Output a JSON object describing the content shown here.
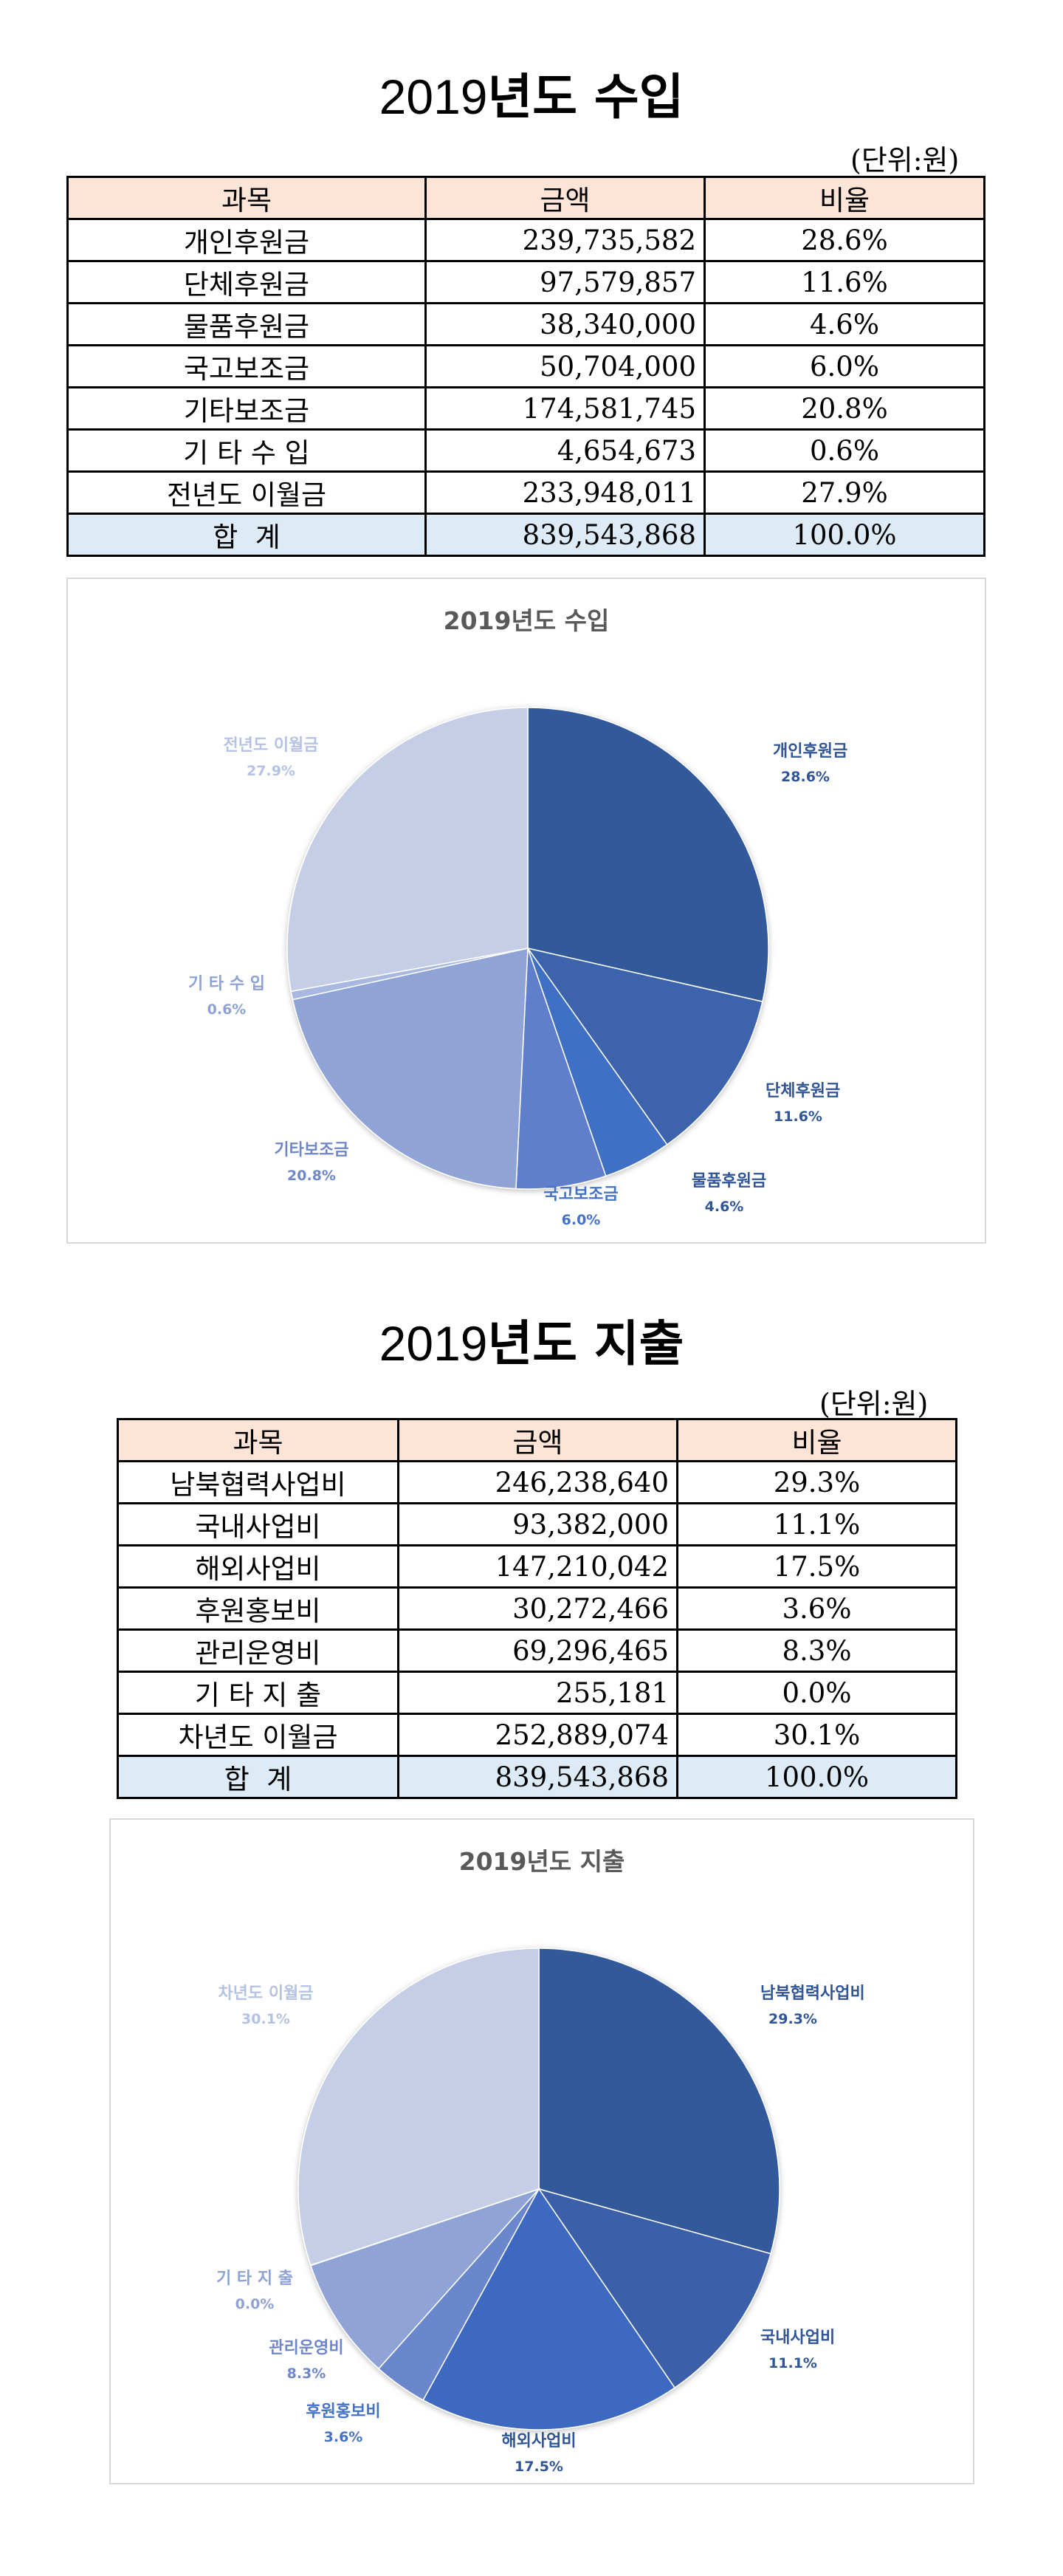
{
  "income": {
    "title_year": "2019",
    "title_rest": "년도 수입",
    "unit": "(단위:원)",
    "headers": [
      "과목",
      "금액",
      "비율"
    ],
    "rows": [
      {
        "name": "개인후원금",
        "amount": "239,735,582",
        "ratio": "28.6%"
      },
      {
        "name": "단체후원금",
        "amount": "97,579,857",
        "ratio": "11.6%"
      },
      {
        "name": "물품후원금",
        "amount": "38,340,000",
        "ratio": "4.6%"
      },
      {
        "name": "국고보조금",
        "amount": "50,704,000",
        "ratio": "6.0%"
      },
      {
        "name": "기타보조금",
        "amount": "174,581,745",
        "ratio": "20.8%"
      },
      {
        "name": "기 타 수 입",
        "amount": "4,654,673",
        "ratio": "0.6%"
      },
      {
        "name": "전년도 이월금",
        "amount": "233,948,011",
        "ratio": "27.9%"
      }
    ],
    "total": {
      "name": "합  계",
      "amount": "839,543,868",
      "ratio": "100.0%"
    }
  },
  "expense": {
    "title_year": "2019",
    "title_rest": "년도 지출",
    "unit": "(단위:원)",
    "headers": [
      "과목",
      "금액",
      "비율"
    ],
    "rows": [
      {
        "name": "남북협력사업비",
        "amount": "246,238,640",
        "ratio": "29.3%"
      },
      {
        "name": "국내사업비",
        "amount": "93,382,000",
        "ratio": "11.1%"
      },
      {
        "name": "해외사업비",
        "amount": "147,210,042",
        "ratio": "17.5%"
      },
      {
        "name": "후원홍보비",
        "amount": "30,272,466",
        "ratio": "3.6%"
      },
      {
        "name": "관리운영비",
        "amount": "69,296,465",
        "ratio": "8.3%"
      },
      {
        "name": "기 타 지 출",
        "amount": "255,181",
        "ratio": "0.0%"
      },
      {
        "name": "차년도 이월금",
        "amount": "252,889,074",
        "ratio": "30.1%"
      }
    ],
    "total": {
      "name": "합  계",
      "amount": "839,543,868",
      "ratio": "100.0%"
    }
  },
  "chart_data": [
    {
      "type": "pie",
      "title": "2019년도 수입",
      "categories": [
        "개인후원금",
        "단체후원금",
        "물품후원금",
        "국고보조금",
        "기타보조금",
        "기 타 수 입",
        "전년도 이월금"
      ],
      "values": [
        239735582,
        97579857,
        38340000,
        50704000,
        174581745,
        4654673,
        233948011
      ],
      "labels": [
        "28.6%",
        "11.6%",
        "4.6%",
        "6.0%",
        "20.8%",
        "0.6%",
        "27.9%"
      ],
      "colors": [
        "#335a9b",
        "#3d64ad",
        "#3f6fc4",
        "#5f7fcc",
        "#8fa3d6",
        "#a8b8e0",
        "#c5cee6"
      ],
      "label_colors": [
        "#2f5597",
        "#2f5597",
        "#2f5597",
        "#4472c4",
        "#6f86c8",
        "#8ea2d4",
        "#b4c2e3"
      ]
    },
    {
      "type": "pie",
      "title": "2019년도 지출",
      "categories": [
        "남북협력사업비",
        "국내사업비",
        "해외사업비",
        "후원홍보비",
        "관리운영비",
        "기 타 지 출",
        "차년도 이월금"
      ],
      "values": [
        246238640,
        93382000,
        147210042,
        30272466,
        69296465,
        255181,
        252889074
      ],
      "labels": [
        "29.3%",
        "11.1%",
        "17.5%",
        "3.6%",
        "8.3%",
        "0.0%",
        "30.1%"
      ],
      "colors": [
        "#335a9b",
        "#3a5fa8",
        "#3d69c0",
        "#6a86cc",
        "#8fa3d6",
        "#a8b8e0",
        "#c5cee6"
      ],
      "label_colors": [
        "#2f5597",
        "#2f5597",
        "#2f5597",
        "#4472c4",
        "#6f86c8",
        "#8ea2d4",
        "#b4c2e3"
      ]
    }
  ]
}
